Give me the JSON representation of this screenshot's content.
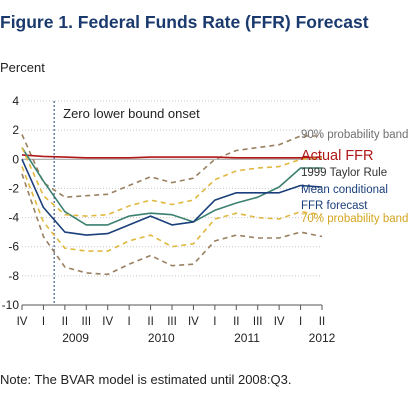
{
  "title": "Figure 1. Federal Funds Rate (FFR) Forecast",
  "ylabel": "Percent",
  "note": "Note: The BVAR model is estimated until 2008:Q3.",
  "chart_data": {
    "type": "line",
    "ylim": [
      -10,
      4
    ],
    "yticks": [
      4,
      2,
      0,
      -2,
      -4,
      -6,
      -8,
      -10
    ],
    "quarters": [
      "IV",
      "I",
      "II",
      "III",
      "IV",
      "I",
      "II",
      "III",
      "IV",
      "I",
      "II",
      "III",
      "IV",
      "I",
      "II"
    ],
    "years": [
      {
        "label": "2009",
        "at": 2.5
      },
      {
        "label": "2010",
        "at": 6.5
      },
      {
        "label": "2011",
        "at": 10.5
      },
      {
        "label": "2012",
        "at": 14
      }
    ],
    "annotation": {
      "text": "Zero lower bound onset",
      "x": 1.5
    },
    "series": [
      {
        "name": "90% probability band",
        "color": "#9a8060",
        "dash": "5,4",
        "values": [
          1.7,
          -1.6,
          -2.6,
          -2.5,
          -2.4,
          -1.8,
          -1.2,
          -1.6,
          -1.3,
          0.0,
          0.6,
          0.8,
          1.0,
          1.6,
          1.6
        ]
      },
      {
        "name": "Actual FFR",
        "color": "#b01818",
        "dash": "",
        "values": [
          0.3,
          0.2,
          0.15,
          0.1,
          0.1,
          0.1,
          0.15,
          0.15,
          0.15,
          0.15,
          0.1,
          0.1,
          0.1,
          0.1,
          0.15
        ]
      },
      {
        "name": "1999 Taylor Rule",
        "color": "#3c8070",
        "dash": "",
        "values": [
          0.8,
          -1.5,
          -3.6,
          -4.5,
          -4.5,
          -3.9,
          -3.7,
          -3.8,
          -4.3,
          -3.5,
          -3.0,
          -2.6,
          -1.9,
          -0.6,
          -0.6
        ]
      },
      {
        "name": "Mean conditional FFR forecast",
        "color": "#1a3f7a",
        "dash": "",
        "values": [
          0.0,
          -3.3,
          -5.0,
          -5.2,
          -5.1,
          -4.5,
          -3.9,
          -4.5,
          -4.3,
          -2.8,
          -2.3,
          -2.3,
          -2.3,
          -1.8,
          -1.9
        ]
      },
      {
        "name": "70% probability band",
        "color": "#e0b840",
        "dash": "5,4",
        "values": [
          0.8,
          -2.5,
          -3.8,
          -3.9,
          -3.8,
          -3.2,
          -2.8,
          -3.1,
          -2.8,
          -1.4,
          -0.8,
          -0.6,
          -0.5,
          0.0,
          0.1
        ]
      },
      {
        "name": "70% lower band",
        "color": "#e0b840",
        "dash": "5,4",
        "values": [
          -0.5,
          -4.3,
          -6.1,
          -6.3,
          -6.3,
          -5.6,
          -5.2,
          -6.0,
          -5.8,
          -4.1,
          -3.7,
          -4.0,
          -4.1,
          -3.6,
          -3.8
        ]
      },
      {
        "name": "90% lower band",
        "color": "#9a8060",
        "dash": "5,4",
        "values": [
          -1.0,
          -5.3,
          -7.4,
          -7.8,
          -7.9,
          -7.2,
          -6.6,
          -7.3,
          -7.2,
          -5.6,
          -5.2,
          -5.4,
          -5.4,
          -5.0,
          -5.3
        ]
      }
    ],
    "legend": [
      {
        "text": "90% probability band",
        "color": "#6f6f6f"
      },
      {
        "text": "Actual FFR",
        "color": "#b01818"
      },
      {
        "text": "1999 Taylor Rule",
        "color": "#333333"
      },
      {
        "text": "Mean conditional",
        "color": "#1a3f7a"
      },
      {
        "text": "FFR forecast",
        "color": "#1a3f7a"
      },
      {
        "text": "70% probability band",
        "color": "#d4a520"
      }
    ],
    "grid": true
  }
}
